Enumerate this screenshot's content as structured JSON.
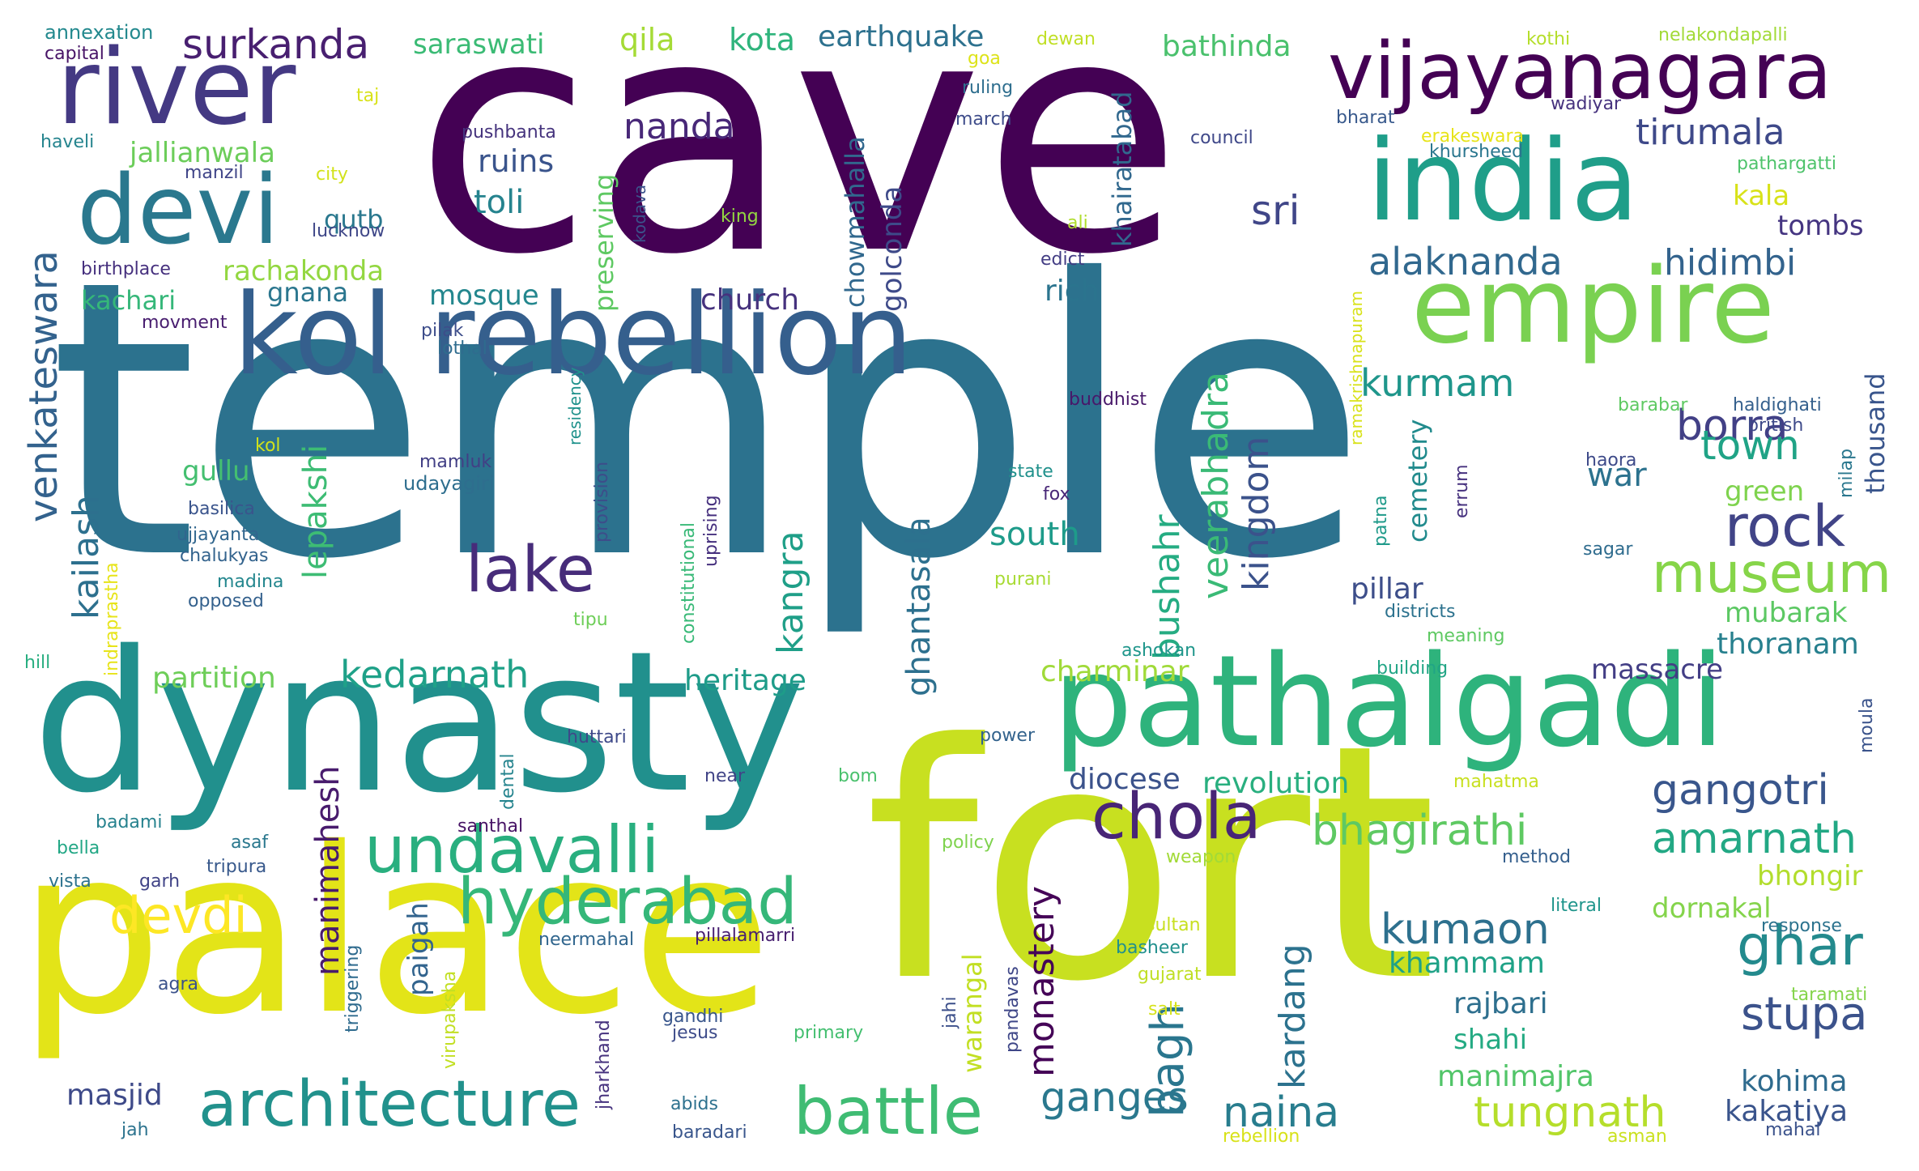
{
  "words": [
    {
      "text": "cave",
      "color": "#440154"
    },
    {
      "text": "temple",
      "color": "#2c728e"
    },
    {
      "text": "fort",
      "color": "#c8e020"
    },
    {
      "text": "palace",
      "color": "#e3e418"
    },
    {
      "text": "dynasty",
      "color": "#21908d"
    },
    {
      "text": "pathalgadi",
      "color": "#2eb37c"
    },
    {
      "text": "kol rebellion",
      "color": "#355f8d"
    },
    {
      "text": "india",
      "color": "#1f9e89"
    },
    {
      "text": "empire",
      "color": "#7ad151"
    },
    {
      "text": "river",
      "color": "#443983"
    },
    {
      "text": "vijayanagara",
      "color": "#440154"
    },
    {
      "text": "devi",
      "color": "#2a788e"
    },
    {
      "text": "undavalli",
      "color": "#29af7f"
    },
    {
      "text": "hyderabad",
      "color": "#35b779"
    },
    {
      "text": "architecture",
      "color": "#21918c"
    },
    {
      "text": "battle",
      "color": "#3fbc73"
    },
    {
      "text": "chola",
      "color": "#482576"
    },
    {
      "text": "lake",
      "color": "#472c7a"
    },
    {
      "text": "museum",
      "color": "#86d549"
    },
    {
      "text": "rock",
      "color": "#414487"
    },
    {
      "text": "ghar",
      "color": "#238a8d"
    },
    {
      "text": "devdi",
      "color": "#fde725"
    },
    {
      "text": "stupa",
      "color": "#3b528b"
    },
    {
      "text": "gangotri",
      "color": "#39568c"
    },
    {
      "text": "amarnath",
      "color": "#22a884"
    },
    {
      "text": "bhagirathi",
      "color": "#5ec962"
    },
    {
      "text": "kumaon",
      "color": "#2d708e"
    },
    {
      "text": "tungnath",
      "color": "#b5de2b"
    },
    {
      "text": "naina",
      "color": "#287d8e"
    },
    {
      "text": "ganges",
      "color": "#2a788e"
    },
    {
      "text": "kedarnath",
      "color": "#1fa188"
    },
    {
      "text": "nanda",
      "color": "#482878"
    },
    {
      "text": "tirumala",
      "color": "#3e4989"
    },
    {
      "text": "alaknanda",
      "color": "#31688e"
    },
    {
      "text": "hidimbi",
      "color": "#33638d"
    },
    {
      "text": "kurmam",
      "color": "#1f968b"
    },
    {
      "text": "borra",
      "color": "#424086"
    },
    {
      "text": "town",
      "color": "#20a386"
    },
    {
      "text": "surkanda",
      "color": "#481f70"
    },
    {
      "text": "sri",
      "color": "#404688"
    },
    {
      "text": "toli",
      "color": "#25838e"
    },
    {
      "text": "ruins",
      "color": "#3a548c"
    },
    {
      "text": "church",
      "color": "#46327e"
    },
    {
      "text": "rich",
      "color": "#2b748e"
    },
    {
      "text": "mosque",
      "color": "#24878e"
    },
    {
      "text": "south",
      "color": "#1e9b8a"
    },
    {
      "text": "heritage",
      "color": "#1e9c89"
    },
    {
      "text": "partition",
      "color": "#6ece58"
    },
    {
      "text": "charminar",
      "color": "#a0da39"
    },
    {
      "text": "diocese",
      "color": "#3b528b"
    },
    {
      "text": "revolution",
      "color": "#29af7f"
    },
    {
      "text": "massacre",
      "color": "#433e85"
    },
    {
      "text": "thoranam",
      "color": "#27808e"
    },
    {
      "text": "mubarak",
      "color": "#5cc863"
    },
    {
      "text": "green",
      "color": "#7fd34e"
    },
    {
      "text": "war",
      "color": "#2c728e"
    },
    {
      "text": "pillar",
      "color": "#3d4e8a"
    },
    {
      "text": "tombs",
      "color": "#453581"
    },
    {
      "text": "kala",
      "color": "#d8e219"
    },
    {
      "text": "rajbari",
      "color": "#2e6f8e"
    },
    {
      "text": "shahi",
      "color": "#24aa83"
    },
    {
      "text": "khammam",
      "color": "#1fa287"
    },
    {
      "text": "manimajra",
      "color": "#52c569"
    },
    {
      "text": "kohima",
      "color": "#2f6b8e"
    },
    {
      "text": "kakatiya",
      "color": "#3a548c"
    },
    {
      "text": "dornakal",
      "color": "#84d44b"
    },
    {
      "text": "bhongir",
      "color": "#b2dd2d"
    },
    {
      "text": "masjid",
      "color": "#3e4a89"
    },
    {
      "text": "jallianwala",
      "color": "#6ccd5a"
    },
    {
      "text": "rachakonda",
      "color": "#93d741"
    },
    {
      "text": "kachari",
      "color": "#35b779"
    },
    {
      "text": "gnana",
      "color": "#2a768e"
    },
    {
      "text": "gullu",
      "color": "#44bf70"
    },
    {
      "text": "qutb",
      "color": "#2a788e"
    },
    {
      "text": "saraswati",
      "color": "#3bbb75"
    },
    {
      "text": "qila",
      "color": "#a5db36"
    },
    {
      "text": "kota",
      "color": "#2fb47c"
    },
    {
      "text": "earthquake",
      "color": "#2d718e"
    },
    {
      "text": "bathinda",
      "color": "#4ac16d"
    },
    {
      "text": "venkateswara",
      "color": "#33628d"
    },
    {
      "text": "kailash",
      "color": "#2d708e"
    },
    {
      "text": "lepakshi",
      "color": "#3dbc74"
    },
    {
      "text": "manimahesh",
      "color": "#481b6d"
    },
    {
      "text": "paigah",
      "color": "#32648e"
    },
    {
      "text": "kangra",
      "color": "#1f9f88"
    },
    {
      "text": "ghantasala",
      "color": "#2d708e"
    },
    {
      "text": "monastery",
      "color": "#450457"
    },
    {
      "text": "warangal",
      "color": "#c2df23"
    },
    {
      "text": "bushahr",
      "color": "#25ac82"
    },
    {
      "text": "bagh",
      "color": "#2a768e"
    },
    {
      "text": "veerabhadra",
      "color": "#3aba76"
    },
    {
      "text": "kingdom",
      "color": "#3b528b"
    },
    {
      "text": "kardang",
      "color": "#2c728e"
    },
    {
      "text": "khairatabad",
      "color": "#31688e"
    },
    {
      "text": "golconda",
      "color": "#3e4a89"
    },
    {
      "text": "chowmahalla",
      "color": "#31688e"
    },
    {
      "text": "preserving",
      "color": "#5ec962"
    },
    {
      "text": "cemetery",
      "color": "#228b8d"
    },
    {
      "text": "thousand",
      "color": "#39558c"
    },
    {
      "text": "annexation",
      "color": "#23898e"
    },
    {
      "text": "capital",
      "color": "#481467"
    },
    {
      "text": "haveli",
      "color": "#25848e"
    },
    {
      "text": "manzil",
      "color": "#404588"
    },
    {
      "text": "city",
      "color": "#d2e21b"
    },
    {
      "text": "lucknow",
      "color": "#3f4788"
    },
    {
      "text": "birthplace",
      "color": "#46307e"
    },
    {
      "text": "movment",
      "color": "#481d6f"
    },
    {
      "text": "pilak",
      "color": "#3d4d8a"
    },
    {
      "text": "lothal",
      "color": "#2f6c8e"
    },
    {
      "text": "kol",
      "color": "#d0e11c"
    },
    {
      "text": "mamluk",
      "color": "#423f85"
    },
    {
      "text": "udayagiri",
      "color": "#2e6e8e"
    },
    {
      "text": "basilica",
      "color": "#3a548c"
    },
    {
      "text": "ujjayanta",
      "color": "#31668e"
    },
    {
      "text": "chalukyas",
      "color": "#33638d"
    },
    {
      "text": "madina",
      "color": "#24878e"
    },
    {
      "text": "opposed",
      "color": "#34618d"
    },
    {
      "text": "hill",
      "color": "#28ae80"
    },
    {
      "text": "indraprastha",
      "color": "#e7e419"
    },
    {
      "text": "taj",
      "color": "#d8e219"
    },
    {
      "text": "pushbanta",
      "color": "#45337d"
    },
    {
      "text": "king",
      "color": "#93d741"
    },
    {
      "text": "kodava",
      "color": "#3b528b"
    },
    {
      "text": "goa",
      "color": "#dde318"
    },
    {
      "text": "dewan",
      "color": "#c0df25"
    },
    {
      "text": "ruling",
      "color": "#2e6e8e"
    },
    {
      "text": "march",
      "color": "#3e4c8a"
    },
    {
      "text": "council",
      "color": "#3f4889"
    },
    {
      "text": "edict",
      "color": "#433d84"
    },
    {
      "text": "ali",
      "color": "#b0dd2f"
    },
    {
      "text": "buddhist",
      "color": "#48186a"
    },
    {
      "text": "residency",
      "color": "#20928c"
    },
    {
      "text": "provision",
      "color": "#3d4d8a"
    },
    {
      "text": "constitutional",
      "color": "#38b977"
    },
    {
      "text": "uprising",
      "color": "#46307e"
    },
    {
      "text": "state",
      "color": "#21918c"
    },
    {
      "text": "fox",
      "color": "#482677"
    },
    {
      "text": "purani",
      "color": "#a8db34"
    },
    {
      "text": "tipu",
      "color": "#6ece58"
    },
    {
      "text": "ashokan",
      "color": "#1f968b"
    },
    {
      "text": "huttari",
      "color": "#3e4989"
    },
    {
      "text": "near",
      "color": "#414487"
    },
    {
      "text": "bom",
      "color": "#4ac16d"
    },
    {
      "text": "power",
      "color": "#33638d"
    },
    {
      "text": "dental",
      "color": "#25848e"
    },
    {
      "text": "policy",
      "color": "#7fd34e"
    },
    {
      "text": "weapon",
      "color": "#a2da37"
    },
    {
      "text": "pillalamarri",
      "color": "#482071"
    },
    {
      "text": "neermahal",
      "color": "#31668e"
    },
    {
      "text": "santhal",
      "color": "#471365"
    },
    {
      "text": "badami",
      "color": "#26828e"
    },
    {
      "text": "bella",
      "color": "#22a785"
    },
    {
      "text": "asaf",
      "color": "#2a788e"
    },
    {
      "text": "vista",
      "color": "#2c728e"
    },
    {
      "text": "garh",
      "color": "#414487"
    },
    {
      "text": "tripura",
      "color": "#38598c"
    },
    {
      "text": "agra",
      "color": "#3b528b"
    },
    {
      "text": "triggering",
      "color": "#2f6b8e"
    },
    {
      "text": "virupaksha",
      "color": "#c2df23"
    },
    {
      "text": "jharkhand",
      "color": "#46327e"
    },
    {
      "text": "gandhi",
      "color": "#39568c"
    },
    {
      "text": "jesus",
      "color": "#3e4c8a"
    },
    {
      "text": "primary",
      "color": "#44bf70"
    },
    {
      "text": "jahi",
      "color": "#3c4f8a"
    },
    {
      "text": "pandavas",
      "color": "#3f4788"
    },
    {
      "text": "abids",
      "color": "#2d718e"
    },
    {
      "text": "baradari",
      "color": "#39568c"
    },
    {
      "text": "jah",
      "color": "#2c738e"
    },
    {
      "text": "sultan",
      "color": "#c8e020"
    },
    {
      "text": "basheer",
      "color": "#21908d"
    },
    {
      "text": "gujarat",
      "color": "#c0df25"
    },
    {
      "text": "salt",
      "color": "#d5e21a"
    },
    {
      "text": "rebellion",
      "color": "#d8e219"
    },
    {
      "text": "asman",
      "color": "#cae11f"
    },
    {
      "text": "mahal",
      "color": "#3b528b"
    },
    {
      "text": "kothi",
      "color": "#b5de2b"
    },
    {
      "text": "nelakondapalli",
      "color": "#a2da37"
    },
    {
      "text": "bharat",
      "color": "#38598c"
    },
    {
      "text": "wadiyar",
      "color": "#46327e"
    },
    {
      "text": "erakeswara",
      "color": "#e7e419"
    },
    {
      "text": "khursheed",
      "color": "#2a768e"
    },
    {
      "text": "pathargatti",
      "color": "#4ec36b"
    },
    {
      "text": "ramakrishnapuram",
      "color": "#d8e219"
    },
    {
      "text": "barabar",
      "color": "#5ec962"
    },
    {
      "text": "haldighati",
      "color": "#35608d"
    },
    {
      "text": "british",
      "color": "#3e4a89"
    },
    {
      "text": "milap",
      "color": "#2a778e"
    },
    {
      "text": "haora",
      "color": "#3e4a89"
    },
    {
      "text": "errum",
      "color": "#46317e"
    },
    {
      "text": "patna",
      "color": "#1f9a8a"
    },
    {
      "text": "sagar",
      "color": "#2f6c8e"
    },
    {
      "text": "districts",
      "color": "#2c728e"
    },
    {
      "text": "meaning",
      "color": "#5ec962"
    },
    {
      "text": "building",
      "color": "#21a585"
    },
    {
      "text": "mahatma",
      "color": "#c8e020"
    },
    {
      "text": "moula",
      "color": "#3a538b"
    },
    {
      "text": "method",
      "color": "#355f8d"
    },
    {
      "text": "literal",
      "color": "#1f958b"
    },
    {
      "text": "response",
      "color": "#2c738e"
    },
    {
      "text": "taramati",
      "color": "#84d44b"
    }
  ]
}
